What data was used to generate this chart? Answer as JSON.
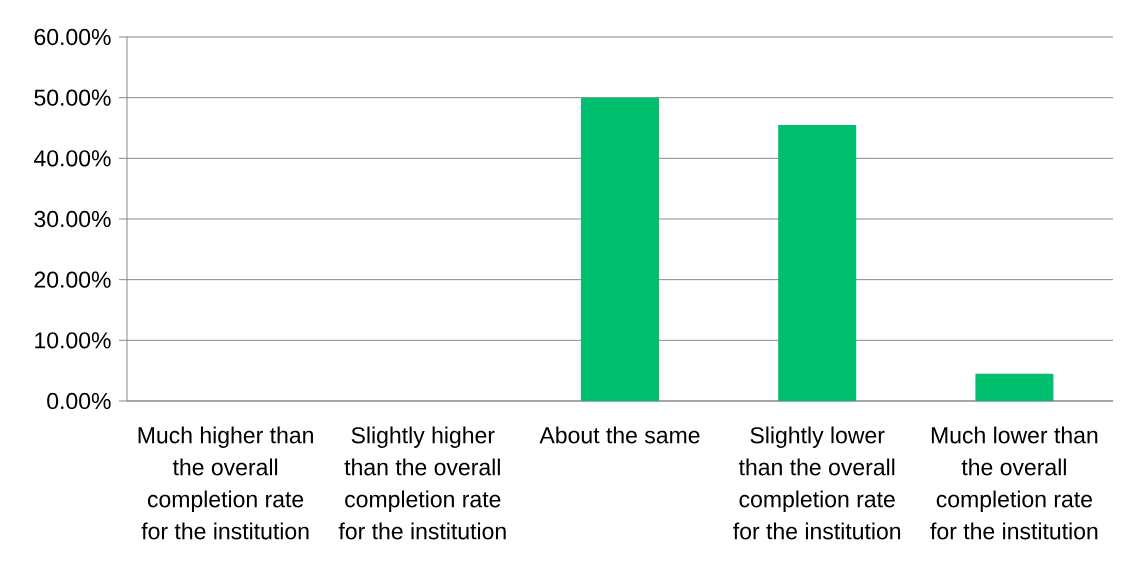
{
  "chart_data": {
    "type": "bar",
    "categories": [
      "Much higher than the overall completion rate for the institution",
      "Slightly higher than the overall completion rate for the institution",
      "About the same",
      "Slightly lower than the overall completion rate for the institution",
      "Much lower than the overall completion rate for the institution"
    ],
    "values": [
      0,
      0,
      50,
      45.5,
      4.5
    ],
    "color": "#00bf6f",
    "ylim": [
      0,
      60
    ],
    "yticks": [
      {
        "value": 0,
        "label": "0.00%"
      },
      {
        "value": 10,
        "label": "10.00%"
      },
      {
        "value": 20,
        "label": "20.00%"
      },
      {
        "value": 30,
        "label": "30.00%"
      },
      {
        "value": 40,
        "label": "40.00%"
      },
      {
        "value": 50,
        "label": "50.00%"
      },
      {
        "value": 60,
        "label": "60.00%"
      }
    ],
    "grid": "y"
  }
}
